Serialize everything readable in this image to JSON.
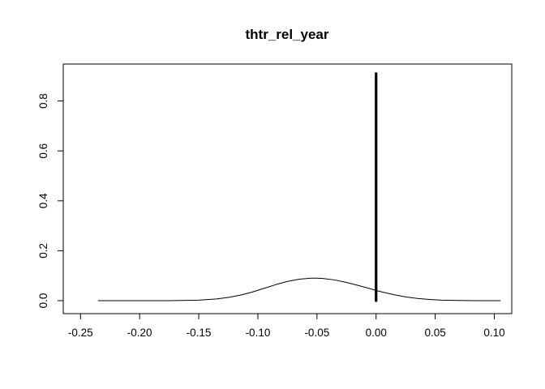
{
  "chart_data": {
    "type": "line",
    "title": "thtr_rel_year",
    "xlabel": "",
    "ylabel": "",
    "xlim": [
      -0.25,
      0.105
    ],
    "ylim": [
      0,
      0.92
    ],
    "grid": false,
    "legend": "none",
    "x_ticks": [
      -0.25,
      -0.2,
      -0.15,
      -0.1,
      -0.05,
      0.0,
      0.05,
      0.1
    ],
    "x_tick_labels": [
      "-0.25",
      "-0.20",
      "-0.15",
      "-0.10",
      "-0.05",
      "0.00",
      "0.05",
      "0.10"
    ],
    "y_ticks": [
      0.0,
      0.2,
      0.4,
      0.6,
      0.8
    ],
    "y_tick_labels": [
      "0.0",
      "0.2",
      "0.4",
      "0.6",
      "0.8"
    ],
    "series": [
      {
        "style": "thin-line",
        "color": "#000000",
        "x": [
          -0.235,
          -0.2,
          -0.175,
          -0.15,
          -0.135,
          -0.125,
          -0.115,
          -0.105,
          -0.095,
          -0.085,
          -0.075,
          -0.065,
          -0.055,
          -0.05,
          -0.045,
          -0.035,
          -0.025,
          -0.015,
          -0.005,
          0.0,
          0.005,
          0.015,
          0.025,
          0.035,
          0.045,
          0.055,
          0.07,
          0.085,
          0.105
        ],
        "y": [
          0.0,
          0.0,
          0.0,
          0.002,
          0.007,
          0.013,
          0.022,
          0.034,
          0.049,
          0.064,
          0.077,
          0.086,
          0.09,
          0.09,
          0.089,
          0.083,
          0.073,
          0.061,
          0.048,
          0.041,
          0.035,
          0.024,
          0.015,
          0.009,
          0.005,
          0.002,
          0.001,
          0.0,
          0.0
        ]
      },
      {
        "style": "thick-vertical-line",
        "color": "#000000",
        "x": [
          0.0,
          0.0
        ],
        "y": [
          0.0,
          0.91
        ]
      }
    ]
  }
}
